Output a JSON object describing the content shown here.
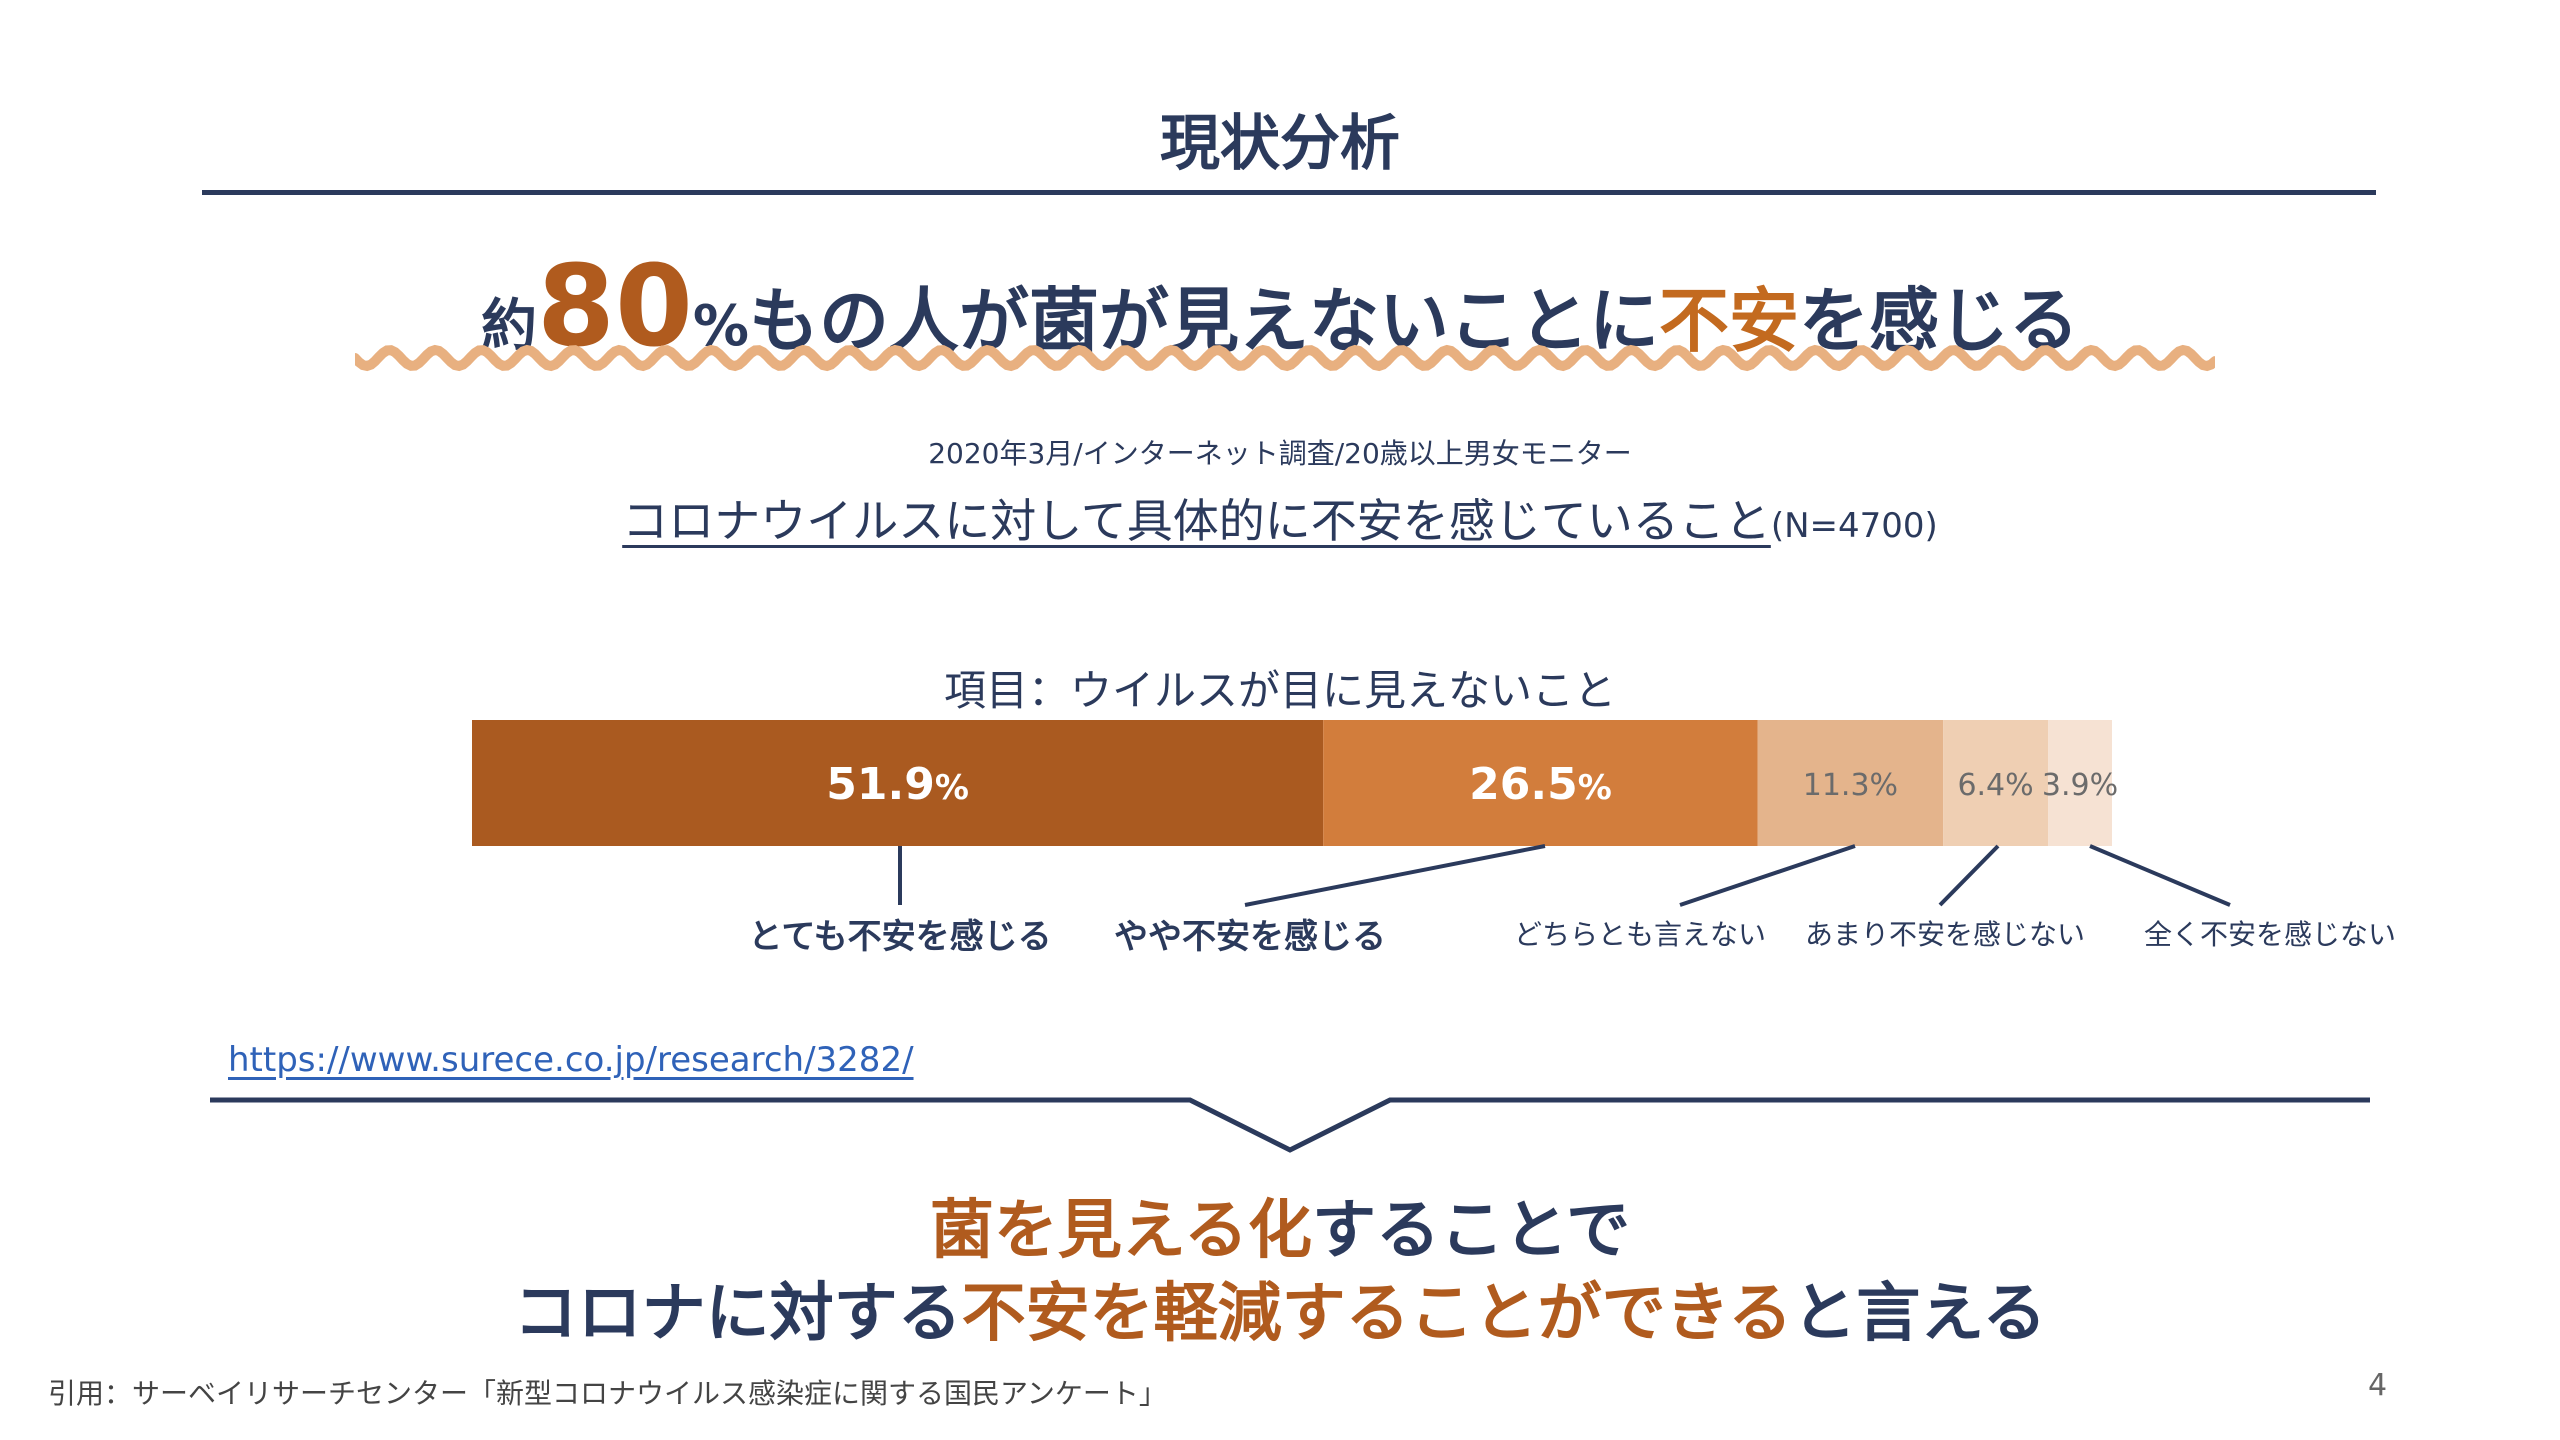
{
  "slide": {
    "title": "現状分析",
    "headline": {
      "prefix": "約",
      "number": "80",
      "percent": "%",
      "middle": "もの人が菌が見えないことに",
      "highlight": "不安",
      "suffix": "を感じる"
    },
    "survey_meta": "2020年3月/インターネット調査/20歳以上男女モニター",
    "survey_question": "コロナウイルスに対して具体的に不安を感じていること",
    "sample_size": "(N=4700)",
    "item_label": "項目：ウイルスが目に見えないこと",
    "source_url": "https://www.surece.co.jp/research/3282/",
    "conclusion": {
      "line1_highlight": "菌を見える化",
      "line1_rest": "することで",
      "line2_pre": "コロナに対する",
      "line2_highlight": "不安を軽減することができる",
      "line2_post": "と言える"
    },
    "citation": "引用：サーベイリサーチセンター「新型コロナウイルス感染症に関する国民アンケート」",
    "page_number": "4"
  },
  "colors": {
    "navy": "#2b3a5c",
    "accent": "#b05b1e",
    "wave": "#e8b080",
    "link": "#2f62b8"
  },
  "chart_data": {
    "type": "bar",
    "orientation": "horizontal-stacked-100",
    "categories": [
      "ウイルスが目に見えないこと"
    ],
    "series": [
      {
        "name": "とても不安を感じる",
        "value": 51.9,
        "label_number": "51.9",
        "label_unit": "%",
        "color": "#aa5a20",
        "label_style": "big",
        "category_style": "bold"
      },
      {
        "name": "やや不安を感じる",
        "value": 26.5,
        "label_number": "26.5",
        "label_unit": "%",
        "color": "#d27d3c",
        "label_style": "big",
        "category_style": "bold"
      },
      {
        "name": "どちらとも言えない",
        "value": 11.3,
        "label_number": "11.3%",
        "label_unit": "",
        "color": "#e4b48c",
        "label_style": "small",
        "category_style": "normal"
      },
      {
        "name": "あまり不安を感じない",
        "value": 6.4,
        "label_number": "6.4%",
        "label_unit": "",
        "color": "#efcfb3",
        "label_style": "small",
        "category_style": "normal"
      },
      {
        "name": "全く不安を感じない",
        "value": 3.9,
        "label_number": "3.9%",
        "label_unit": "",
        "color": "#f6e2d3",
        "label_style": "small",
        "category_style": "normal"
      }
    ],
    "xlim": [
      0,
      100
    ]
  }
}
